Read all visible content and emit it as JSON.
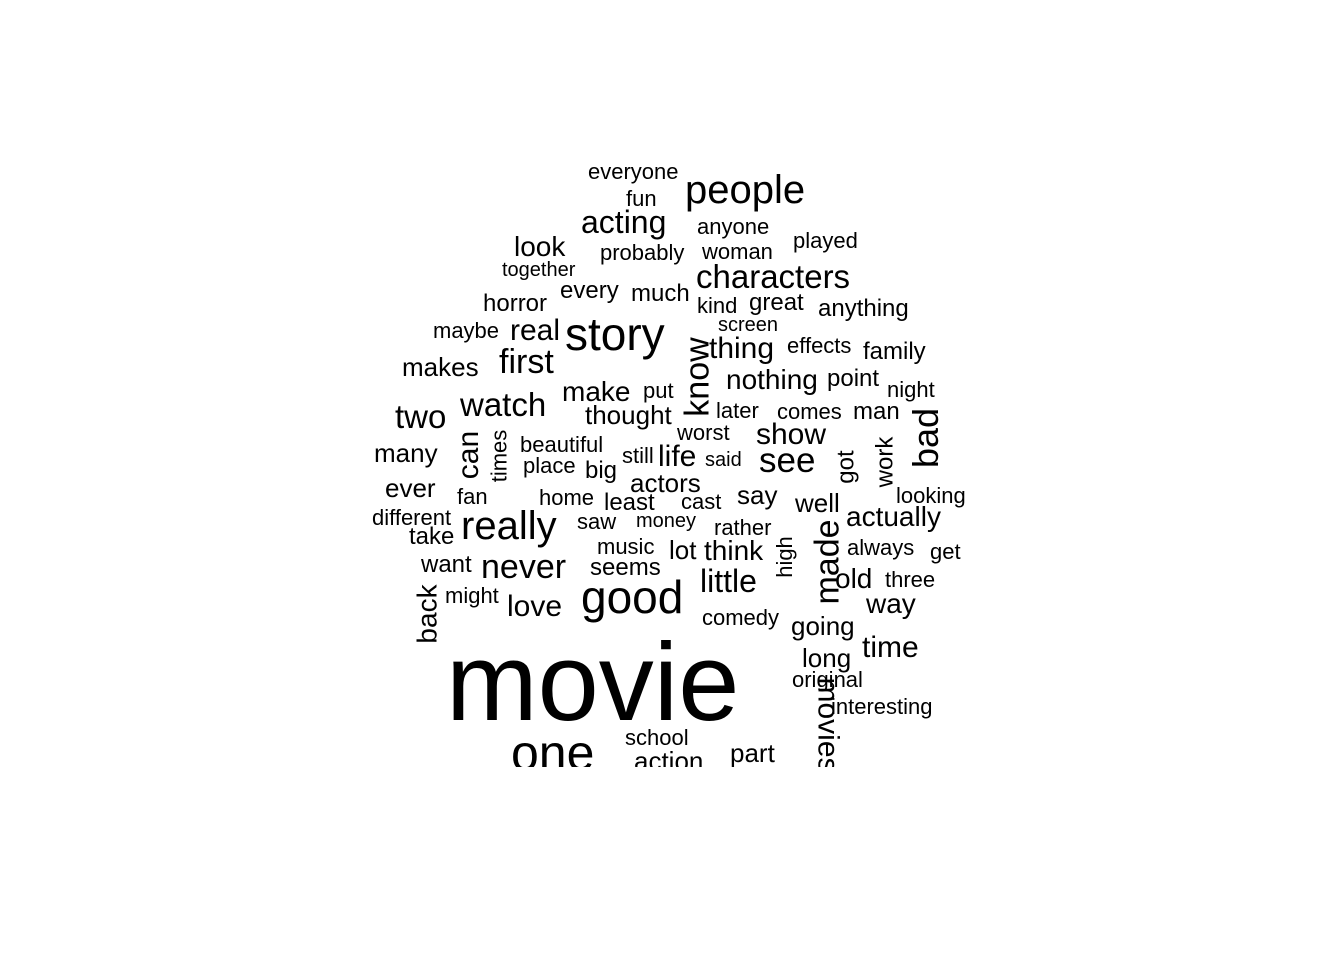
{
  "words": [
    "movie",
    "one",
    "good",
    "story",
    "really",
    "people",
    "characters",
    "never",
    "watch",
    "first",
    "know",
    "two",
    "bad",
    "see",
    "acting",
    "little",
    "made",
    "show",
    "actually",
    "make",
    "thought",
    "can",
    "real",
    "look",
    "love",
    "makes",
    "many",
    "ever",
    "take",
    "want",
    "back",
    "life",
    "actors",
    "say",
    "think",
    "lot",
    "well",
    "thing",
    "nothing",
    "way",
    "time",
    "old",
    "going",
    "long",
    "movies",
    "part",
    "action",
    "school",
    "horror",
    "every",
    "much",
    "great",
    "kind",
    "anything",
    "effects",
    "family",
    "point",
    "night",
    "later",
    "comes",
    "man",
    "worst",
    "said",
    "still",
    "big",
    "beautiful",
    "place",
    "times",
    "fan",
    "different",
    "might",
    "home",
    "least",
    "cast",
    "saw",
    "money",
    "rather",
    "music",
    "seems",
    "high",
    "always",
    "get",
    "three",
    "comedy",
    "original",
    "interesting",
    "looking",
    "work",
    "got",
    "put",
    "screen",
    "maybe",
    "together",
    "probably",
    "woman",
    "played",
    "anyone",
    "fun",
    "everyone"
  ]
}
